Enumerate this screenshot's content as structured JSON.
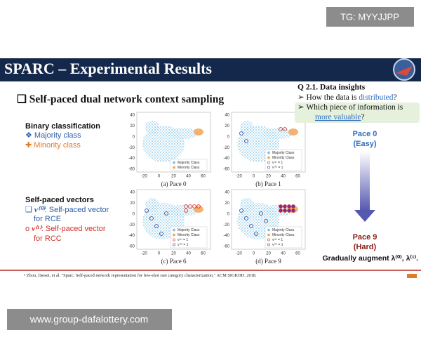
{
  "watermark_top": "TG: MYYJJPP",
  "header": {
    "title": "SPARC – Experimental Results"
  },
  "section_title": "Self-paced dual network context sampling",
  "binary": {
    "title": "Binary classification",
    "items": [
      "Majority class",
      "Minority class"
    ]
  },
  "vectors": {
    "title": "Self-paced vectors",
    "items": [
      {
        "symbol": "v⁽⁰⁾",
        "lines": [
          ": Self-paced vector",
          "for RCE"
        ]
      },
      {
        "symbol": "v⁽¹⁾",
        "lines": [
          ": Self-paced vector",
          "for RCC"
        ]
      }
    ]
  },
  "panel_axes": {
    "yticks": [
      "40",
      "20",
      "0",
      "-20",
      "-40",
      "-60"
    ],
    "xticks": [
      "-20",
      "0",
      "20",
      "40",
      "60"
    ]
  },
  "panels": [
    {
      "caption": "(a) Pace 0",
      "legend": [
        "Majority Class",
        "Minority Class"
      ]
    },
    {
      "caption": "(b) Pace 1",
      "legend": [
        "Majority Class",
        "Minority Class",
        "v⁽¹⁾ = 1",
        "v⁽⁰⁾ = 1"
      ]
    },
    {
      "caption": "(c) Pace 6",
      "legend": [
        "Majority Class",
        "Minority Class",
        "v⁽¹⁾ = 1",
        "v⁽⁰⁾ = 1"
      ]
    },
    {
      "caption": "(d) Pace 9",
      "legend": [
        "Majority Class",
        "Minority Class",
        "v⁽¹⁾ = 1",
        "v⁽⁰⁾ = 1"
      ]
    }
  ],
  "insights": {
    "title": "Q 2.1. Data insights",
    "q1": [
      "How the data is ",
      "distributed",
      "?"
    ],
    "q2": [
      "Which piece of information is",
      "more valuable",
      "?"
    ]
  },
  "pace_start": [
    "Pace 0",
    "(Easy)"
  ],
  "pace_end": [
    "Pace 9",
    "(Hard)"
  ],
  "augment": "Gradually augment λ⁽⁰⁾, λ⁽¹⁾.",
  "citation": "Zhou, Dawei, et al. \"Sparc: Self-paced network representation for few-shot rare category characterization.\" ACM SIGKDD. 2018.",
  "watermark_bottom": "www.group-dafalottery.com"
}
